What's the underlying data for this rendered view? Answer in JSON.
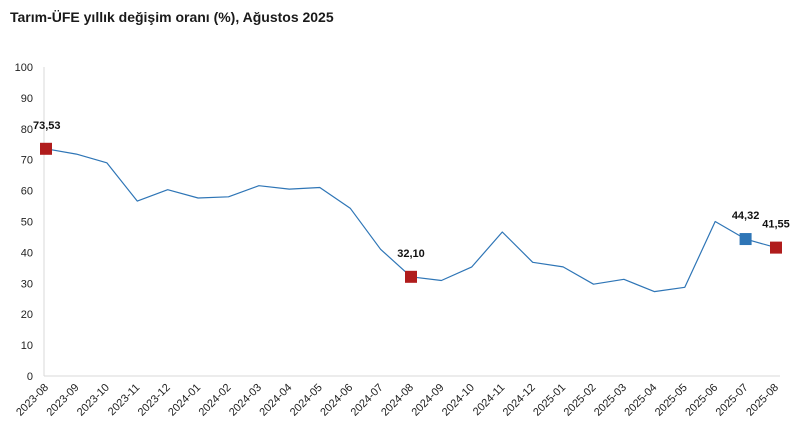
{
  "chart_data": {
    "type": "line",
    "title": "Tarım-ÜFE yıllık değişim oranı (%), Ağustos 2025",
    "xlabel": "",
    "ylabel": "",
    "ylim": [
      0,
      100
    ],
    "yticks": [
      0,
      10,
      20,
      30,
      40,
      50,
      60,
      70,
      80,
      90,
      100
    ],
    "grid": false,
    "categories": [
      "2023-08",
      "2023-09",
      "2023-10",
      "2023-11",
      "2023-12",
      "2024-01",
      "2024-02",
      "2024-03",
      "2024-04",
      "2024-05",
      "2024-06",
      "2024-07",
      "2024-08",
      "2024-09",
      "2024-10",
      "2024-11",
      "2024-12",
      "2025-01",
      "2025-02",
      "2025-03",
      "2025-04",
      "2025-05",
      "2025-06",
      "2025-07",
      "2025-08"
    ],
    "series": [
      {
        "values": [
          73.53,
          71.8,
          69.0,
          56.6,
          60.3,
          57.6,
          58.0,
          61.6,
          60.5,
          61.0,
          54.3,
          41.0,
          32.1,
          30.9,
          35.3,
          46.6,
          36.8,
          35.3,
          29.7,
          31.3,
          27.3,
          28.7,
          50.0,
          44.32,
          41.55
        ],
        "color": "#2e75b6"
      }
    ],
    "highlights": [
      {
        "index": 0,
        "label": "73,53",
        "color": "#b01c1c"
      },
      {
        "index": 12,
        "label": "32,10",
        "color": "#b01c1c"
      },
      {
        "index": 23,
        "label": "44,32",
        "color": "#2e75b6"
      },
      {
        "index": 24,
        "label": "41,55",
        "color": "#b01c1c"
      }
    ]
  }
}
